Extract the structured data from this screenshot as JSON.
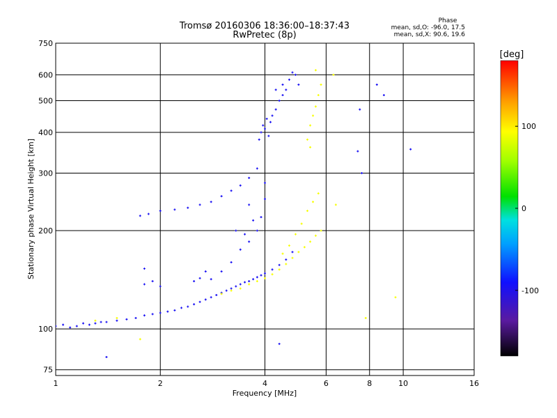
{
  "chart_data": {
    "type": "scatter",
    "title_line1": "Tromsø 20160306 18:36:00–18:37:43",
    "title_line2": "RwPretec (8p)",
    "phase_stats": {
      "heading": "Phase",
      "line_o": "mean, sd,O: -96.0, 17.5",
      "line_x": "mean, sd,X:  90.6, 19.6"
    },
    "xlabel": "Frequency [MHz]",
    "ylabel": "Stationary phase Virtual Height [km]",
    "x_scale": "log",
    "y_scale": "log",
    "xlim": [
      1,
      16
    ],
    "ylim": [
      72,
      750
    ],
    "x_ticks": [
      1,
      2,
      4,
      6,
      8,
      10,
      16
    ],
    "x_tick_labels": [
      "1",
      "2",
      "4",
      "6",
      "8",
      "10",
      "16"
    ],
    "y_ticks": [
      75,
      100,
      200,
      300,
      400,
      500,
      600,
      750
    ],
    "y_tick_labels": [
      "75",
      "100",
      "200",
      "300",
      "400",
      "500",
      "600",
      "750"
    ],
    "grid": true,
    "colorbar": {
      "label": "[deg]",
      "min": -180,
      "max": 180,
      "ticks": [
        100,
        0,
        -100
      ],
      "tick_labels": [
        "100",
        "0",
        "-100"
      ]
    },
    "series": [
      {
        "name": "O",
        "phase_deg": -96,
        "points": [
          [
            1.0,
            102
          ],
          [
            1.05,
            103
          ],
          [
            1.1,
            101
          ],
          [
            1.15,
            102
          ],
          [
            1.2,
            104
          ],
          [
            1.25,
            103
          ],
          [
            1.3,
            104
          ],
          [
            1.35,
            105
          ],
          [
            1.4,
            105
          ],
          [
            1.5,
            106
          ],
          [
            1.6,
            107
          ],
          [
            1.7,
            108
          ],
          [
            1.8,
            110
          ],
          [
            1.9,
            111
          ],
          [
            2.0,
            112
          ],
          [
            2.1,
            113
          ],
          [
            2.2,
            114
          ],
          [
            2.3,
            116
          ],
          [
            2.4,
            117
          ],
          [
            2.5,
            119
          ],
          [
            2.6,
            121
          ],
          [
            2.7,
            123
          ],
          [
            2.8,
            125
          ],
          [
            2.9,
            127
          ],
          [
            3.0,
            129
          ],
          [
            3.1,
            131
          ],
          [
            3.2,
            133
          ],
          [
            3.3,
            135
          ],
          [
            3.4,
            137
          ],
          [
            3.5,
            139
          ],
          [
            3.6,
            140
          ],
          [
            3.7,
            142
          ],
          [
            3.8,
            144
          ],
          [
            3.9,
            146
          ],
          [
            4.0,
            148
          ],
          [
            4.2,
            152
          ],
          [
            4.4,
            157
          ],
          [
            4.6,
            163
          ],
          [
            4.8,
            172
          ],
          [
            3.4,
            175
          ],
          [
            3.6,
            185
          ],
          [
            3.8,
            200
          ],
          [
            3.9,
            220
          ],
          [
            4.0,
            250
          ],
          [
            4.0,
            280
          ],
          [
            3.2,
            160
          ],
          [
            3.5,
            195
          ],
          [
            3.7,
            215
          ],
          [
            3.3,
            200
          ],
          [
            3.6,
            240
          ],
          [
            2.7,
            150
          ],
          [
            1.8,
            137
          ],
          [
            1.9,
            140
          ],
          [
            2.0,
            135
          ],
          [
            1.8,
            153
          ],
          [
            2.5,
            140
          ],
          [
            2.6,
            143
          ],
          [
            2.8,
            142
          ],
          [
            3.0,
            150
          ],
          [
            1.75,
            222
          ],
          [
            1.85,
            225
          ],
          [
            2.0,
            230
          ],
          [
            2.2,
            232
          ],
          [
            2.4,
            235
          ],
          [
            2.6,
            240
          ],
          [
            2.8,
            245
          ],
          [
            3.0,
            255
          ],
          [
            3.2,
            265
          ],
          [
            3.4,
            275
          ],
          [
            3.6,
            290
          ],
          [
            3.8,
            310
          ],
          [
            3.85,
            380
          ],
          [
            3.9,
            400
          ],
          [
            3.95,
            420
          ],
          [
            4.0,
            410
          ],
          [
            4.05,
            440
          ],
          [
            4.1,
            390
          ],
          [
            4.15,
            430
          ],
          [
            4.2,
            450
          ],
          [
            4.3,
            470
          ],
          [
            4.4,
            500
          ],
          [
            4.5,
            520
          ],
          [
            4.6,
            540
          ],
          [
            4.7,
            580
          ],
          [
            4.8,
            610
          ],
          [
            4.9,
            600
          ],
          [
            5.0,
            560
          ],
          [
            4.3,
            540
          ],
          [
            4.5,
            560
          ],
          [
            7.5,
            470
          ],
          [
            7.4,
            350
          ],
          [
            7.6,
            300
          ],
          [
            8.4,
            560
          ],
          [
            8.8,
            520
          ],
          [
            10.5,
            355
          ],
          [
            1.4,
            82
          ],
          [
            4.4,
            90
          ]
        ]
      },
      {
        "name": "X",
        "phase_deg": 90.6,
        "points": [
          [
            1.3,
            106
          ],
          [
            1.5,
            108
          ],
          [
            3.0,
            128
          ],
          [
            3.2,
            131
          ],
          [
            3.4,
            133
          ],
          [
            3.6,
            137
          ],
          [
            3.8,
            140
          ],
          [
            4.0,
            143
          ],
          [
            4.2,
            147
          ],
          [
            4.4,
            152
          ],
          [
            4.6,
            158
          ],
          [
            4.8,
            165
          ],
          [
            5.0,
            172
          ],
          [
            5.2,
            178
          ],
          [
            5.4,
            185
          ],
          [
            5.6,
            193
          ],
          [
            5.8,
            200
          ],
          [
            4.5,
            170
          ],
          [
            4.7,
            180
          ],
          [
            4.9,
            195
          ],
          [
            5.1,
            210
          ],
          [
            5.3,
            230
          ],
          [
            5.5,
            245
          ],
          [
            5.7,
            260
          ],
          [
            5.4,
            420
          ],
          [
            5.5,
            450
          ],
          [
            5.6,
            480
          ],
          [
            5.7,
            520
          ],
          [
            5.8,
            560
          ],
          [
            5.6,
            620
          ],
          [
            5.3,
            380
          ],
          [
            5.4,
            360
          ],
          [
            6.3,
            600
          ],
          [
            6.4,
            240
          ],
          [
            7.8,
            108
          ],
          [
            9.5,
            125
          ],
          [
            1.75,
            93
          ]
        ]
      }
    ]
  }
}
